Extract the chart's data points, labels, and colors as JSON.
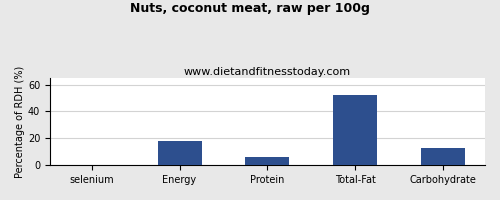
{
  "title": "Nuts, coconut meat, raw per 100g",
  "subtitle": "www.dietandfitnesstoday.com",
  "categories": [
    "selenium",
    "Energy",
    "Protein",
    "Total-Fat",
    "Carbohydrate"
  ],
  "values": [
    0,
    18,
    6.5,
    52,
    12.5
  ],
  "bar_color": "#2d4f8e",
  "ylabel": "Percentage of RDH (%)",
  "ylim": [
    0,
    65
  ],
  "yticks": [
    0,
    20,
    40,
    60
  ],
  "background_color": "#e8e8e8",
  "plot_bg_color": "#ffffff",
  "title_fontsize": 9,
  "subtitle_fontsize": 8,
  "label_fontsize": 7,
  "tick_fontsize": 7
}
